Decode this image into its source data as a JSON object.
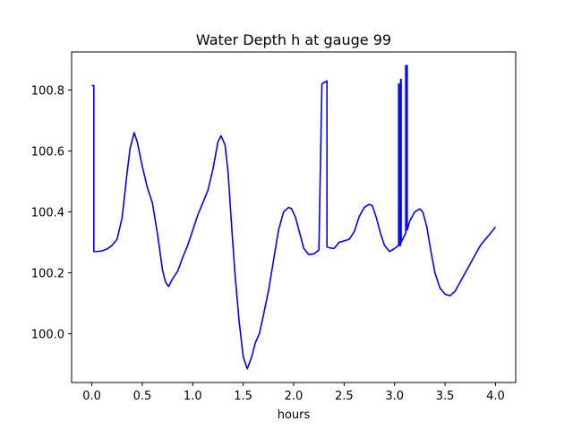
{
  "chart_data": {
    "type": "line",
    "title": "Water Depth h at gauge 99",
    "xlabel": "hours",
    "ylabel": "",
    "xlim": [
      -0.2,
      4.2
    ],
    "ylim": [
      99.84,
      100.925
    ],
    "grid": false,
    "xticks": [
      0.0,
      0.5,
      1.0,
      1.5,
      2.0,
      2.5,
      3.0,
      3.5,
      4.0
    ],
    "xtick_labels": [
      "0.0",
      "0.5",
      "1.0",
      "1.5",
      "2.0",
      "2.5",
      "3.0",
      "3.5",
      "4.0"
    ],
    "yticks": [
      100.0,
      100.2,
      100.4,
      100.6,
      100.8
    ],
    "ytick_labels": [
      "100.0",
      "100.2",
      "100.4",
      "100.6",
      "100.8"
    ],
    "series": [
      {
        "color": "#0000ff",
        "x": [
          0.0,
          0.02,
          0.02,
          0.05,
          0.1,
          0.15,
          0.2,
          0.25,
          0.3,
          0.35,
          0.38,
          0.42,
          0.45,
          0.5,
          0.55,
          0.6,
          0.65,
          0.7,
          0.73,
          0.76,
          0.8,
          0.85,
          0.9,
          0.95,
          1.0,
          1.05,
          1.1,
          1.15,
          1.2,
          1.25,
          1.28,
          1.32,
          1.35,
          1.38,
          1.42,
          1.46,
          1.5,
          1.54,
          1.58,
          1.62,
          1.66,
          1.7,
          1.75,
          1.8,
          1.85,
          1.9,
          1.95,
          1.98,
          2.02,
          2.06,
          2.1,
          2.15,
          2.2,
          2.25,
          2.28,
          2.28,
          2.33,
          2.33,
          2.36,
          2.4,
          2.45,
          2.5,
          2.55,
          2.6,
          2.65,
          2.7,
          2.75,
          2.78,
          2.82,
          2.86,
          2.9,
          2.95,
          3.0,
          3.04,
          3.04,
          3.045,
          3.045,
          3.06,
          3.06,
          3.065,
          3.065,
          3.08,
          3.11,
          3.11,
          3.125,
          3.125,
          3.15,
          3.2,
          3.25,
          3.28,
          3.32,
          3.36,
          3.4,
          3.45,
          3.5,
          3.55,
          3.6,
          3.65,
          3.7,
          3.75,
          3.8,
          3.85,
          3.9,
          3.95,
          4.0
        ],
        "y": [
          100.815,
          100.815,
          100.27,
          100.27,
          100.272,
          100.278,
          100.29,
          100.31,
          100.38,
          100.53,
          100.61,
          100.66,
          100.63,
          100.55,
          100.48,
          100.43,
          100.33,
          100.21,
          100.17,
          100.155,
          100.18,
          100.205,
          100.25,
          100.29,
          100.34,
          100.39,
          100.43,
          100.47,
          100.54,
          100.63,
          100.65,
          100.62,
          100.53,
          100.38,
          100.19,
          100.04,
          99.925,
          99.885,
          99.92,
          99.97,
          100.0,
          100.06,
          100.14,
          100.24,
          100.34,
          100.4,
          100.415,
          100.41,
          100.38,
          100.33,
          100.28,
          100.26,
          100.262,
          100.275,
          100.82,
          100.82,
          100.83,
          100.285,
          100.282,
          100.28,
          100.3,
          100.305,
          100.31,
          100.335,
          100.385,
          100.415,
          100.425,
          100.42,
          100.38,
          100.33,
          100.29,
          100.27,
          100.28,
          100.29,
          100.82,
          100.82,
          100.29,
          100.29,
          100.835,
          100.835,
          100.3,
          100.31,
          100.33,
          100.88,
          100.88,
          100.34,
          100.37,
          100.4,
          100.41,
          100.4,
          100.35,
          100.27,
          100.2,
          100.15,
          100.13,
          100.125,
          100.14,
          100.17,
          100.2,
          100.23,
          100.26,
          100.29,
          100.31,
          100.33,
          100.35
        ]
      }
    ]
  }
}
